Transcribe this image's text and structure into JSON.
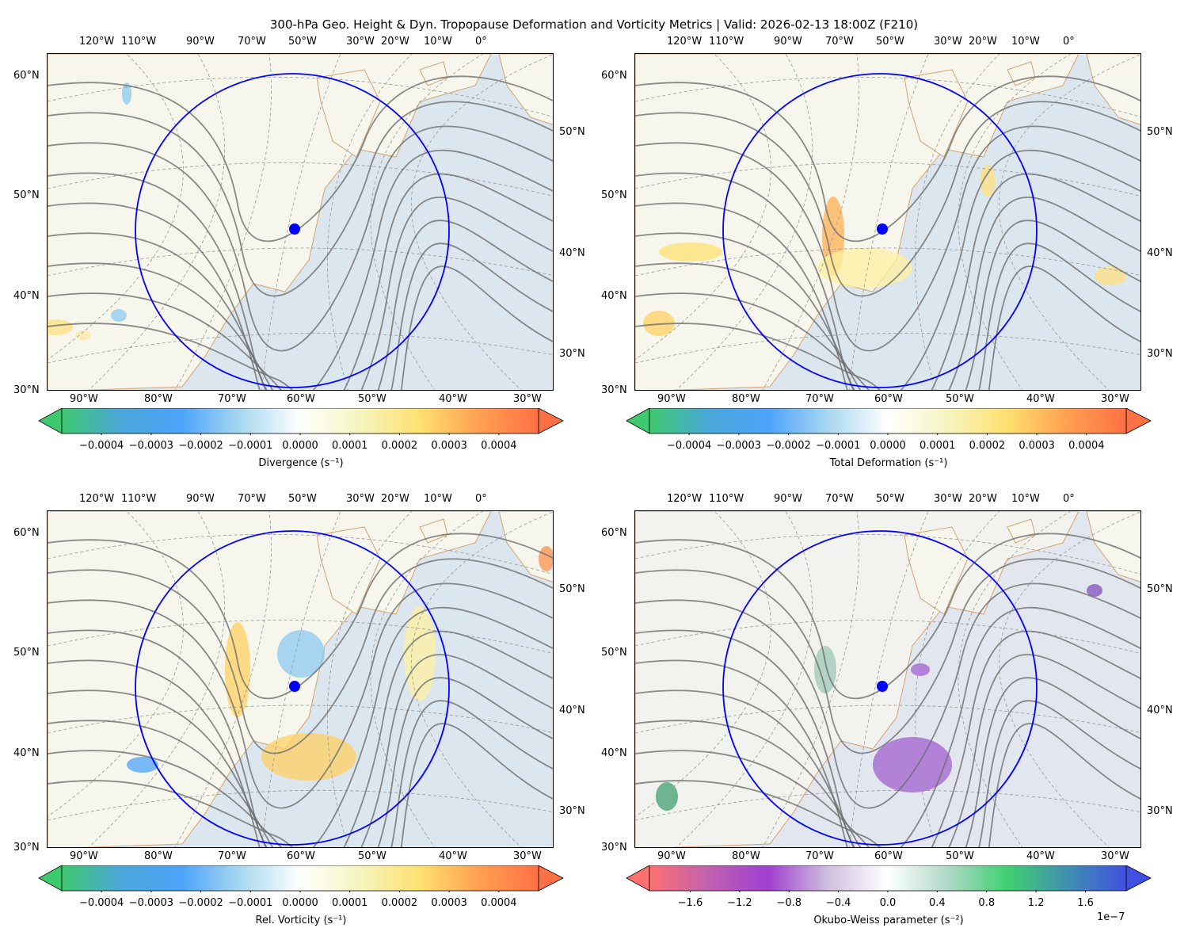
{
  "title": "300-hPa Geo. Height & Dyn. Tropopause Deformation and Vorticity Metrics |  Valid: 2026-02-13 18:00Z (F210)",
  "map_labels": {
    "top_lon": [
      "120°W",
      "110°W",
      "90°W",
      "70°W",
      "50°W",
      "30°W",
      "20°W",
      "10°W",
      "0°"
    ],
    "bottom_lon": [
      "90°W",
      "80°W",
      "70°W",
      "60°W",
      "50°W",
      "40°W",
      "30°W"
    ],
    "left_lat": [
      "60°N",
      "50°N",
      "40°N",
      "30°N"
    ],
    "right_lat": [
      "50°N",
      "40°N",
      "30°N"
    ]
  },
  "colors": {
    "circle": "#0000ff",
    "contour": "#6e6e6e",
    "coast": "#d4a373",
    "ocean": "#dce6ee",
    "land": "#f6f6ec"
  },
  "panels": [
    {
      "name": "divergence",
      "label": "Divergence (s⁻¹)",
      "ticks": [
        "−0.0004",
        "−0.0003",
        "−0.0002",
        "−0.0001",
        "0.0000",
        "0.0001",
        "0.0002",
        "0.0003",
        "0.0004"
      ],
      "tick_values": [
        -0.0004,
        -0.0003,
        -0.0002,
        -0.0001,
        0,
        0.0001,
        0.0002,
        0.0003,
        0.0004
      ],
      "range": [
        -0.00048,
        0.00048
      ],
      "cmap": [
        "#3ec96e",
        "#4aa7d8",
        "#4da3fa",
        "#a8d8f0",
        "#ffffff",
        "#f5f5c0",
        "#ffe070",
        "#ffa050",
        "#ff7045"
      ],
      "offset_text": ""
    },
    {
      "name": "total-deformation",
      "label": "Total Deformation (s⁻¹)",
      "ticks": [
        "−0.0004",
        "−0.0003",
        "−0.0002",
        "−0.0001",
        "0.0000",
        "0.0001",
        "0.0002",
        "0.0003",
        "0.0004"
      ],
      "tick_values": [
        -0.0004,
        -0.0003,
        -0.0002,
        -0.0001,
        0,
        0.0001,
        0.0002,
        0.0003,
        0.0004
      ],
      "range": [
        -0.00048,
        0.00048
      ],
      "cmap": [
        "#3ec96e",
        "#4aa7d8",
        "#4da3fa",
        "#a8d8f0",
        "#ffffff",
        "#f5f5c0",
        "#ffe070",
        "#ffa050",
        "#ff7045"
      ],
      "offset_text": ""
    },
    {
      "name": "relative-vorticity",
      "label": "Rel. Vorticity (s⁻¹)",
      "ticks": [
        "−0.0004",
        "−0.0003",
        "−0.0002",
        "−0.0001",
        "0.0000",
        "0.0001",
        "0.0002",
        "0.0003",
        "0.0004"
      ],
      "tick_values": [
        -0.0004,
        -0.0003,
        -0.0002,
        -0.0001,
        0,
        0.0001,
        0.0002,
        0.0003,
        0.0004
      ],
      "range": [
        -0.00048,
        0.00048
      ],
      "cmap": [
        "#3ec96e",
        "#4aa7d8",
        "#4da3fa",
        "#a8d8f0",
        "#ffffff",
        "#f5f5c0",
        "#ffe070",
        "#ffa050",
        "#ff7045"
      ],
      "offset_text": ""
    },
    {
      "name": "okubo-weiss",
      "label": "Okubo-Weiss parameter (s⁻²)",
      "ticks": [
        "−1.6",
        "−1.2",
        "−0.8",
        "−0.4",
        "0.0",
        "0.4",
        "0.8",
        "1.2",
        "1.6"
      ],
      "tick_values": [
        -1.6,
        -1.2,
        -0.8,
        -0.4,
        0,
        0.4,
        0.8,
        1.2,
        1.6
      ],
      "range": [
        -1.93,
        1.93
      ],
      "cmap": [
        "#ff7070",
        "#c060b0",
        "#a040d0",
        "#d0c0e0",
        "#ffffff",
        "#b0d8c8",
        "#40d070",
        "#4090b0",
        "#4050e0"
      ],
      "offset_text": "1e−7"
    }
  ]
}
